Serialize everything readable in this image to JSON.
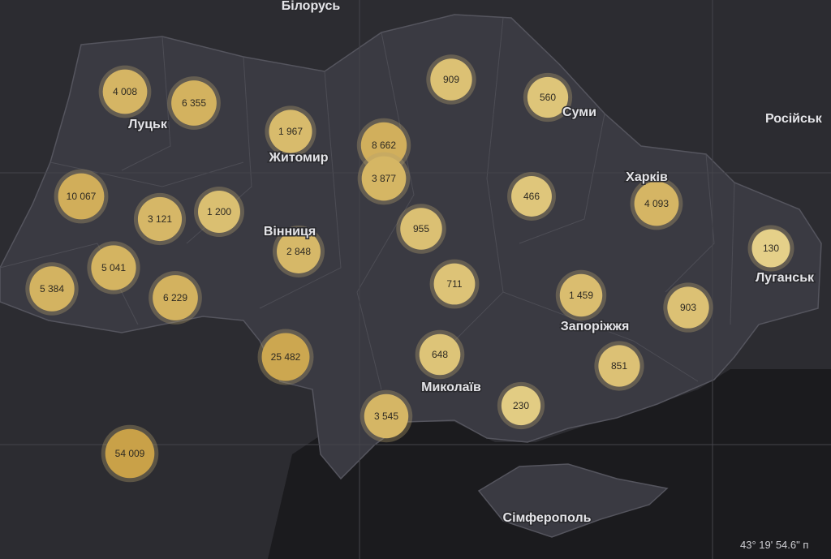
{
  "labels": [
    "Білорусь",
    "Луцьк",
    "Житомир",
    "Суми",
    "Російськ",
    "Харків",
    "Вінниця",
    "Луганськ",
    "Запоріжжя",
    "Миколаїв",
    "Сімферополь"
  ],
  "coordinates": "43° 19' 54.6\" п",
  "markers": [
    {
      "value": 4008,
      "label": "4 008"
    },
    {
      "value": 6355,
      "label": "6 355"
    },
    {
      "value": 1967,
      "label": "1 967"
    },
    {
      "value": 8662,
      "label": "8 662"
    },
    {
      "value": 3877,
      "label": "3 877"
    },
    {
      "value": 909,
      "label": "909"
    },
    {
      "value": 560,
      "label": "560"
    },
    {
      "value": 10067,
      "label": "10 067"
    },
    {
      "value": 3121,
      "label": "3 121"
    },
    {
      "value": 1200,
      "label": "1 200"
    },
    {
      "value": 466,
      "label": "466"
    },
    {
      "value": 4093,
      "label": "4 093"
    },
    {
      "value": 955,
      "label": "955"
    },
    {
      "value": 2848,
      "label": "2 848"
    },
    {
      "value": 130,
      "label": "130"
    },
    {
      "value": 5041,
      "label": "5 041"
    },
    {
      "value": 5384,
      "label": "5 384"
    },
    {
      "value": 6229,
      "label": "6 229"
    },
    {
      "value": 711,
      "label": "711"
    },
    {
      "value": 1459,
      "label": "1 459"
    },
    {
      "value": 903,
      "label": "903"
    },
    {
      "value": 25482,
      "label": "25 482"
    },
    {
      "value": 648,
      "label": "648"
    },
    {
      "value": 851,
      "label": "851"
    },
    {
      "value": 230,
      "label": "230"
    },
    {
      "value": 3545,
      "label": "3 545"
    },
    {
      "value": 54009,
      "label": "54 009"
    }
  ]
}
